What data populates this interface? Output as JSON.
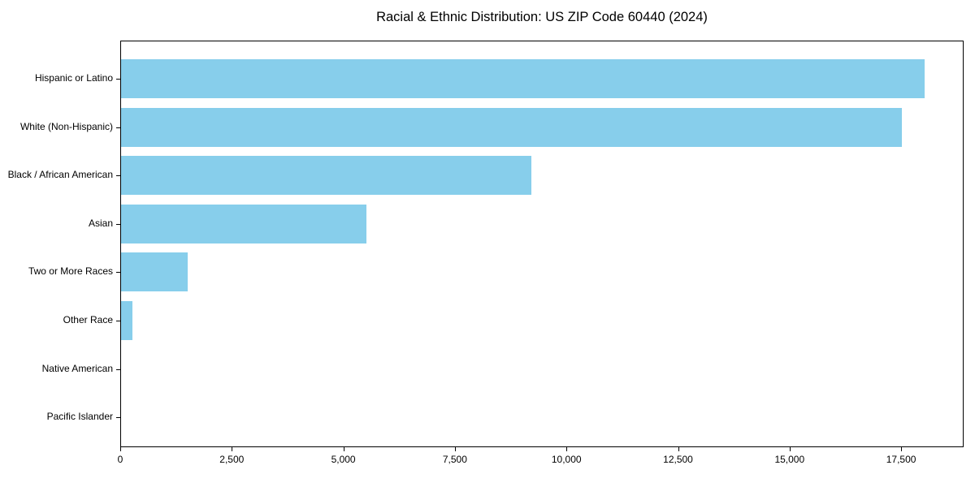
{
  "chart_data": {
    "type": "bar",
    "orientation": "horizontal",
    "title": "Racial & Ethnic Distribution: US ZIP Code 60440 (2024)",
    "categories": [
      "Hispanic or Latino",
      "White (Non-Hispanic)",
      "Black / African American",
      "Asian",
      "Two or More Races",
      "Other Race",
      "Native American",
      "Pacific Islander"
    ],
    "values": [
      18000,
      17500,
      9200,
      5500,
      1500,
      250,
      0,
      0
    ],
    "xlabel": "",
    "ylabel": "",
    "xlim": [
      0,
      18900
    ],
    "xticks": [
      0,
      2500,
      5000,
      7500,
      10000,
      12500,
      15000,
      17500
    ],
    "xtick_labels": [
      "0",
      "2,500",
      "5,000",
      "7,500",
      "10,000",
      "12,500",
      "15,000",
      "17,500"
    ],
    "grid": false,
    "legend": null,
    "colors": {
      "bar": "#87CEEB",
      "axis": "#000000",
      "text": "#000000",
      "background": "#FFFFFF"
    }
  }
}
